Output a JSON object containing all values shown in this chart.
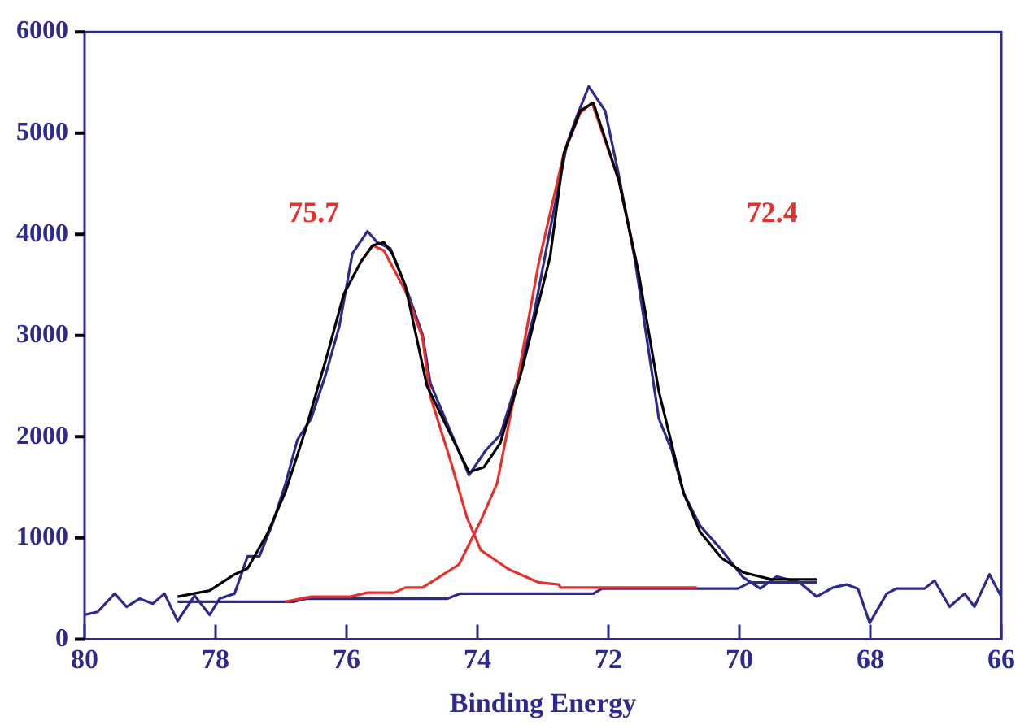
{
  "chart_data": {
    "type": "line",
    "xlabel": "Binding Energy",
    "xlim": [
      80,
      66
    ],
    "ylim": [
      0,
      6000
    ],
    "xticks": [
      80,
      78,
      76,
      74,
      72,
      70,
      68,
      66
    ],
    "yticks": [
      0,
      1000,
      2000,
      3000,
      4000,
      5000,
      6000
    ],
    "grid": false,
    "legend": false,
    "marker": "none",
    "line_style": "solid",
    "annotations": [
      "75.7",
      "72.4"
    ],
    "series": [
      {
        "color": "#2e2a8c",
        "x": [
          80.0,
          79.8,
          79.54,
          79.36,
          79.16,
          78.96,
          78.78,
          78.58,
          78.32,
          78.09,
          77.94,
          77.71,
          77.51,
          77.33,
          77.13,
          76.93,
          76.75,
          76.54,
          76.32,
          76.11,
          75.91,
          75.68,
          75.53,
          75.33,
          75.1,
          74.84,
          74.72,
          74.41,
          74.13,
          73.88,
          73.65,
          73.39,
          73.14,
          72.89,
          72.63,
          72.48,
          72.3,
          72.05,
          71.84,
          71.59,
          71.23,
          71.03,
          70.85,
          70.6,
          70.27,
          69.94,
          69.68,
          69.43,
          69.08,
          68.82,
          68.57,
          68.36,
          68.19,
          68.01,
          67.75,
          67.6,
          67.17,
          67.02,
          66.79,
          66.56,
          66.41,
          66.18,
          66.0
        ],
        "values": [
          240,
          270,
          450,
          320,
          400,
          350,
          450,
          180,
          430,
          240,
          400,
          450,
          820,
          820,
          1140,
          1540,
          1970,
          2180,
          2610,
          3090,
          3810,
          4030,
          3920,
          3860,
          3490,
          3010,
          2530,
          2050,
          1620,
          1860,
          2020,
          2560,
          3200,
          4050,
          4900,
          5170,
          5460,
          5220,
          4580,
          3730,
          2180,
          1860,
          1440,
          1120,
          880,
          610,
          500,
          620,
          560,
          420,
          510,
          540,
          500,
          160,
          450,
          500,
          500,
          580,
          320,
          450,
          320,
          640,
          420
        ]
      },
      {
        "color": "#2e2a8c",
        "x": [
          78.58,
          76.8,
          76.62,
          74.46,
          74.26,
          72.23,
          72.1,
          70.02,
          69.84,
          68.82
        ],
        "values": [
          370,
          370,
          400,
          400,
          450,
          450,
          500,
          500,
          560,
          560
        ]
      },
      {
        "color": "#e8302a",
        "x": [
          75.78,
          75.6,
          75.43,
          75.1,
          74.84,
          74.72,
          74.41,
          74.16,
          73.95,
          73.52,
          73.06,
          72.76,
          72.73,
          70.65
        ],
        "values": [
          3730,
          3890,
          3840,
          3440,
          2980,
          2400,
          1760,
          1200,
          880,
          690,
          560,
          540,
          510,
          510
        ]
      },
      {
        "color": "#e8302a",
        "x": [
          76.93,
          76.54,
          75.94,
          75.68,
          75.27,
          75.1,
          74.84,
          74.59,
          74.28,
          73.95,
          73.7,
          73.39,
          73.06,
          72.68,
          72.43,
          72.25,
          71.84,
          71.54
        ],
        "values": [
          370,
          420,
          420,
          460,
          460,
          510,
          510,
          610,
          740,
          1170,
          1540,
          2560,
          3730,
          4800,
          5200,
          5300,
          4530,
          3620
        ]
      },
      {
        "color": "#000000",
        "x": [
          78.58,
          78.09,
          77.71,
          77.51,
          77.21,
          76.93,
          76.62,
          76.29,
          76.04,
          75.78,
          75.6,
          75.43,
          75.3,
          75.1,
          74.77,
          74.13,
          73.9,
          73.65,
          73.32,
          72.89,
          72.68,
          72.43,
          72.23,
          71.84,
          71.54,
          71.23,
          70.85,
          70.6,
          70.27,
          69.94,
          69.51,
          68.82
        ],
        "values": [
          420,
          480,
          640,
          700,
          1040,
          1460,
          2080,
          2820,
          3410,
          3730,
          3890,
          3920,
          3810,
          3490,
          2500,
          1650,
          1700,
          1940,
          2660,
          3780,
          4800,
          5220,
          5300,
          4530,
          3620,
          2450,
          1440,
          1060,
          800,
          660,
          590,
          590
        ]
      }
    ]
  }
}
